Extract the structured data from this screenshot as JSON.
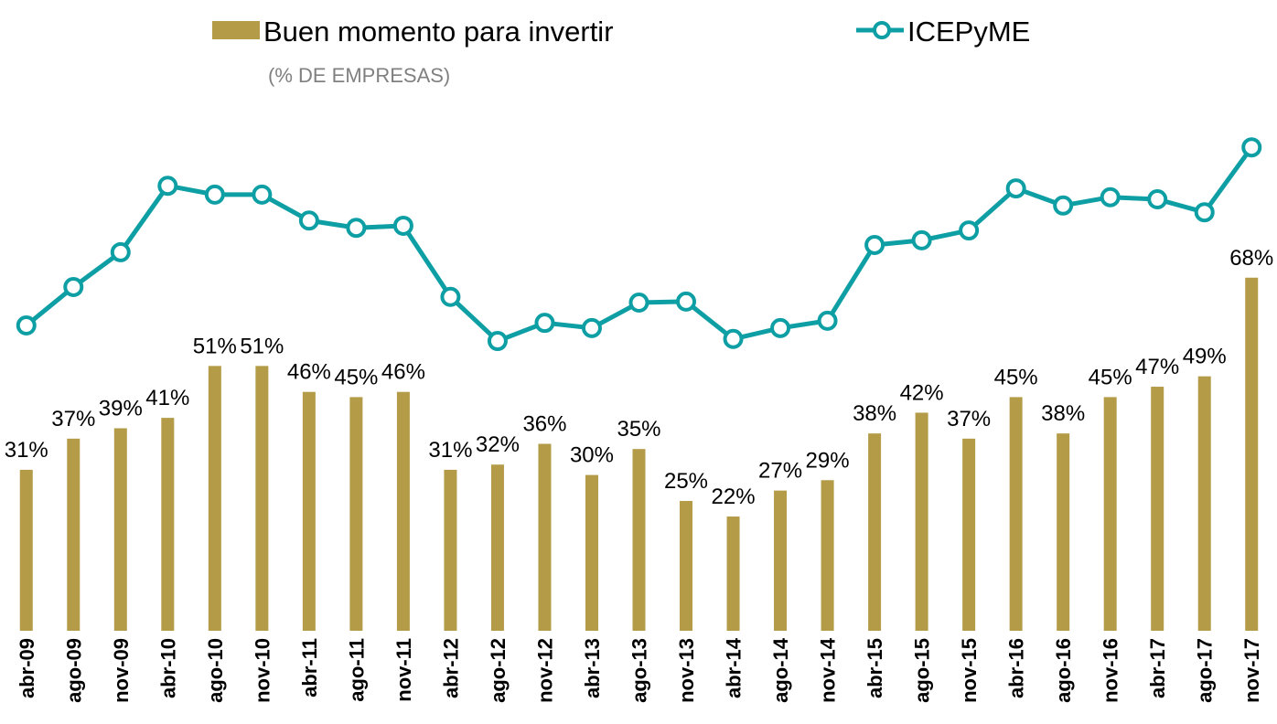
{
  "chart_data": {
    "type": "bar_line",
    "subtitle": "(% DE EMPRESAS)",
    "categories": [
      "abr-09",
      "ago-09",
      "nov-09",
      "abr-10",
      "ago-10",
      "nov-10",
      "abr-11",
      "ago-11",
      "nov-11",
      "abr-12",
      "ago-12",
      "nov-12",
      "abr-13",
      "ago-13",
      "nov-13",
      "abr-14",
      "ago-14",
      "nov-14",
      "abr-15",
      "ago-15",
      "nov-15",
      "abr-16",
      "ago-16",
      "nov-16",
      "abr-17",
      "ago-17",
      "nov-17"
    ],
    "series": [
      {
        "name": "Buen momento para invertir",
        "color": "#b49b47",
        "type": "bar",
        "values": [
          31,
          37,
          39,
          41,
          51,
          51,
          46,
          45,
          46,
          31,
          32,
          36,
          30,
          35,
          25,
          22,
          27,
          29,
          38,
          42,
          37,
          45,
          38,
          45,
          47,
          49,
          68
        ],
        "value_labels": [
          "31%",
          "37%",
          "39%",
          "41%",
          "51%",
          "51%",
          "46%",
          "45%",
          "46%",
          "31%",
          "32%",
          "36%",
          "30%",
          "35%",
          "25%",
          "22%",
          "27%",
          "29%",
          "38%",
          "42%",
          "37%",
          "45%",
          "38%",
          "45%",
          "47%",
          "49%",
          "68%"
        ]
      },
      {
        "name": "ICEPyME",
        "color": "#0e9fa5",
        "type": "line",
        "axis": "y2",
        "values": [
          58.8,
          66.2,
          72.9,
          85.7,
          84.0,
          84.0,
          79.0,
          77.6,
          78.0,
          64.3,
          55.8,
          59.3,
          58.3,
          63.2,
          63.4,
          56.2,
          58.3,
          59.7,
          74.3,
          75.2,
          77.1,
          85.2,
          81.9,
          83.5,
          83.1,
          80.6,
          93.1
        ]
      }
    ],
    "ylim": [
      0,
      100
    ],
    "y2lim": [
      0,
      100
    ]
  }
}
